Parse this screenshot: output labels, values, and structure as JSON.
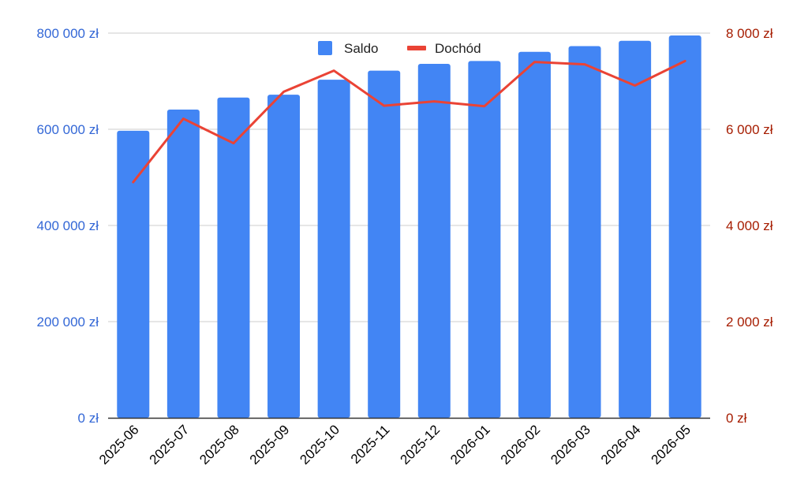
{
  "chart_data": {
    "type": "bar",
    "categories": [
      "2025-06",
      "2025-07",
      "2025-08",
      "2025-09",
      "2025-10",
      "2025-11",
      "2025-12",
      "2026-01",
      "2026-02",
      "2026-03",
      "2026-04",
      "2026-05"
    ],
    "series": [
      {
        "name": "Saldo",
        "type": "bar",
        "axis": "left",
        "color": "#4285f4",
        "values": [
          597000,
          641000,
          666000,
          672000,
          703000,
          722000,
          736000,
          742000,
          761000,
          773000,
          784000,
          795000
        ]
      },
      {
        "name": "Dochód",
        "type": "line",
        "axis": "right",
        "color": "#ea4335",
        "values": [
          4900,
          6220,
          5710,
          6780,
          7220,
          6490,
          6580,
          6480,
          7400,
          7350,
          6910,
          7420
        ]
      }
    ],
    "y_left": {
      "ylim": [
        0,
        800000
      ],
      "ticks": [
        0,
        200000,
        400000,
        600000,
        800000
      ],
      "tick_labels": [
        "0 zł",
        "200 000 zł",
        "400 000 zł",
        "600 000 zł",
        "800 000 zł"
      ],
      "color": "#3367d6"
    },
    "y_right": {
      "ylim": [
        0,
        8000
      ],
      "ticks": [
        0,
        2000,
        4000,
        6000,
        8000
      ],
      "tick_labels": [
        "0 zł",
        "2 000 zł",
        "4 000 zł",
        "6 000 zł",
        "8 000 zł"
      ],
      "color": "#a61c00"
    },
    "grid": true,
    "legend": "top"
  }
}
